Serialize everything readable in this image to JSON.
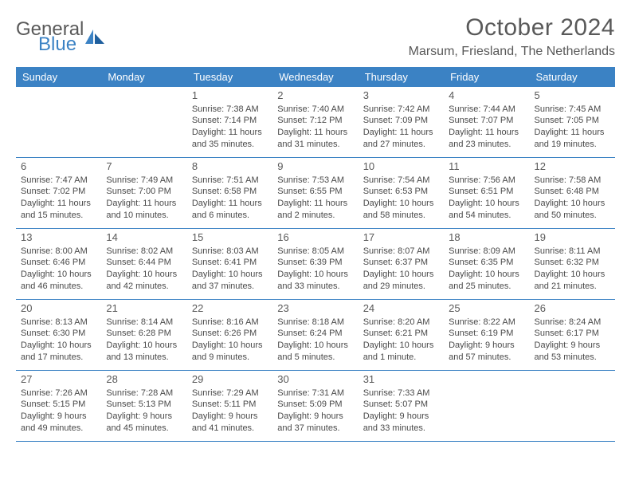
{
  "logo": {
    "word1": "General",
    "word2": "Blue"
  },
  "title": "October 2024",
  "location": "Marsum, Friesland, The Netherlands",
  "colors": {
    "accent": "#3b82c4",
    "text": "#4a4a4a",
    "title": "#595959",
    "background": "#ffffff",
    "dow_text": "#ffffff"
  },
  "dows": [
    "Sunday",
    "Monday",
    "Tuesday",
    "Wednesday",
    "Thursday",
    "Friday",
    "Saturday"
  ],
  "weeks": [
    [
      null,
      null,
      {
        "n": "1",
        "sr": "Sunrise: 7:38 AM",
        "ss": "Sunset: 7:14 PM",
        "dl": "Daylight: 11 hours and 35 minutes."
      },
      {
        "n": "2",
        "sr": "Sunrise: 7:40 AM",
        "ss": "Sunset: 7:12 PM",
        "dl": "Daylight: 11 hours and 31 minutes."
      },
      {
        "n": "3",
        "sr": "Sunrise: 7:42 AM",
        "ss": "Sunset: 7:09 PM",
        "dl": "Daylight: 11 hours and 27 minutes."
      },
      {
        "n": "4",
        "sr": "Sunrise: 7:44 AM",
        "ss": "Sunset: 7:07 PM",
        "dl": "Daylight: 11 hours and 23 minutes."
      },
      {
        "n": "5",
        "sr": "Sunrise: 7:45 AM",
        "ss": "Sunset: 7:05 PM",
        "dl": "Daylight: 11 hours and 19 minutes."
      }
    ],
    [
      {
        "n": "6",
        "sr": "Sunrise: 7:47 AM",
        "ss": "Sunset: 7:02 PM",
        "dl": "Daylight: 11 hours and 15 minutes."
      },
      {
        "n": "7",
        "sr": "Sunrise: 7:49 AM",
        "ss": "Sunset: 7:00 PM",
        "dl": "Daylight: 11 hours and 10 minutes."
      },
      {
        "n": "8",
        "sr": "Sunrise: 7:51 AM",
        "ss": "Sunset: 6:58 PM",
        "dl": "Daylight: 11 hours and 6 minutes."
      },
      {
        "n": "9",
        "sr": "Sunrise: 7:53 AM",
        "ss": "Sunset: 6:55 PM",
        "dl": "Daylight: 11 hours and 2 minutes."
      },
      {
        "n": "10",
        "sr": "Sunrise: 7:54 AM",
        "ss": "Sunset: 6:53 PM",
        "dl": "Daylight: 10 hours and 58 minutes."
      },
      {
        "n": "11",
        "sr": "Sunrise: 7:56 AM",
        "ss": "Sunset: 6:51 PM",
        "dl": "Daylight: 10 hours and 54 minutes."
      },
      {
        "n": "12",
        "sr": "Sunrise: 7:58 AM",
        "ss": "Sunset: 6:48 PM",
        "dl": "Daylight: 10 hours and 50 minutes."
      }
    ],
    [
      {
        "n": "13",
        "sr": "Sunrise: 8:00 AM",
        "ss": "Sunset: 6:46 PM",
        "dl": "Daylight: 10 hours and 46 minutes."
      },
      {
        "n": "14",
        "sr": "Sunrise: 8:02 AM",
        "ss": "Sunset: 6:44 PM",
        "dl": "Daylight: 10 hours and 42 minutes."
      },
      {
        "n": "15",
        "sr": "Sunrise: 8:03 AM",
        "ss": "Sunset: 6:41 PM",
        "dl": "Daylight: 10 hours and 37 minutes."
      },
      {
        "n": "16",
        "sr": "Sunrise: 8:05 AM",
        "ss": "Sunset: 6:39 PM",
        "dl": "Daylight: 10 hours and 33 minutes."
      },
      {
        "n": "17",
        "sr": "Sunrise: 8:07 AM",
        "ss": "Sunset: 6:37 PM",
        "dl": "Daylight: 10 hours and 29 minutes."
      },
      {
        "n": "18",
        "sr": "Sunrise: 8:09 AM",
        "ss": "Sunset: 6:35 PM",
        "dl": "Daylight: 10 hours and 25 minutes."
      },
      {
        "n": "19",
        "sr": "Sunrise: 8:11 AM",
        "ss": "Sunset: 6:32 PM",
        "dl": "Daylight: 10 hours and 21 minutes."
      }
    ],
    [
      {
        "n": "20",
        "sr": "Sunrise: 8:13 AM",
        "ss": "Sunset: 6:30 PM",
        "dl": "Daylight: 10 hours and 17 minutes."
      },
      {
        "n": "21",
        "sr": "Sunrise: 8:14 AM",
        "ss": "Sunset: 6:28 PM",
        "dl": "Daylight: 10 hours and 13 minutes."
      },
      {
        "n": "22",
        "sr": "Sunrise: 8:16 AM",
        "ss": "Sunset: 6:26 PM",
        "dl": "Daylight: 10 hours and 9 minutes."
      },
      {
        "n": "23",
        "sr": "Sunrise: 8:18 AM",
        "ss": "Sunset: 6:24 PM",
        "dl": "Daylight: 10 hours and 5 minutes."
      },
      {
        "n": "24",
        "sr": "Sunrise: 8:20 AM",
        "ss": "Sunset: 6:21 PM",
        "dl": "Daylight: 10 hours and 1 minute."
      },
      {
        "n": "25",
        "sr": "Sunrise: 8:22 AM",
        "ss": "Sunset: 6:19 PM",
        "dl": "Daylight: 9 hours and 57 minutes."
      },
      {
        "n": "26",
        "sr": "Sunrise: 8:24 AM",
        "ss": "Sunset: 6:17 PM",
        "dl": "Daylight: 9 hours and 53 minutes."
      }
    ],
    [
      {
        "n": "27",
        "sr": "Sunrise: 7:26 AM",
        "ss": "Sunset: 5:15 PM",
        "dl": "Daylight: 9 hours and 49 minutes."
      },
      {
        "n": "28",
        "sr": "Sunrise: 7:28 AM",
        "ss": "Sunset: 5:13 PM",
        "dl": "Daylight: 9 hours and 45 minutes."
      },
      {
        "n": "29",
        "sr": "Sunrise: 7:29 AM",
        "ss": "Sunset: 5:11 PM",
        "dl": "Daylight: 9 hours and 41 minutes."
      },
      {
        "n": "30",
        "sr": "Sunrise: 7:31 AM",
        "ss": "Sunset: 5:09 PM",
        "dl": "Daylight: 9 hours and 37 minutes."
      },
      {
        "n": "31",
        "sr": "Sunrise: 7:33 AM",
        "ss": "Sunset: 5:07 PM",
        "dl": "Daylight: 9 hours and 33 minutes."
      },
      null,
      null
    ]
  ]
}
